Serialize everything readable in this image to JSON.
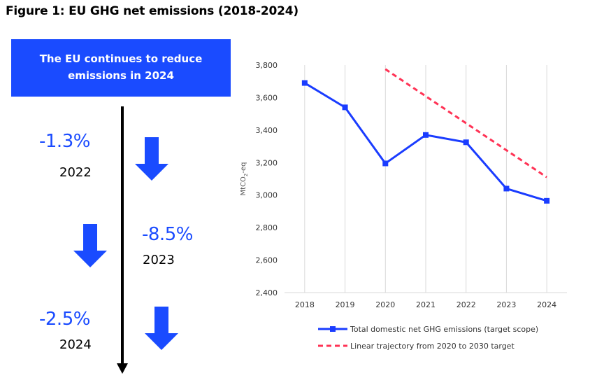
{
  "figure_title": "Figure 1: EU GHG net emissions (2018-2024)",
  "banner": {
    "line1": "The EU continues to reduce",
    "line2": "emissions in 2024"
  },
  "timeline": [
    {
      "pct": "-1.3%",
      "year": "2022"
    },
    {
      "pct": "-8.5%",
      "year": "2023"
    },
    {
      "pct": "-2.5%",
      "year": "2024"
    }
  ],
  "colors": {
    "accent_blue": "#1a4bff",
    "series_blue": "#1a3cff",
    "dashed_red": "#ff3355",
    "grid": "#d9d9d9"
  },
  "chart_data": {
    "type": "line",
    "title": "",
    "xlabel": "",
    "ylabel": "MtCO₂-eq",
    "ylabel_parts": {
      "pre": "MtCO",
      "sub": "2",
      "post": "-eq"
    },
    "x": [
      "2018",
      "2019",
      "2020",
      "2021",
      "2022",
      "2023",
      "2024"
    ],
    "ylim": [
      2400,
      3800
    ],
    "yticks": [
      2400,
      2600,
      2800,
      3000,
      3200,
      3400,
      3600,
      3800
    ],
    "ytick_labels": [
      "2,400",
      "2,600",
      "2,800",
      "3,000",
      "3,200",
      "3,400",
      "3,600",
      "3,800"
    ],
    "series": [
      {
        "name": "Total domestic net GHG emissions (target scope)",
        "style": "solid-square-markers",
        "x": [
          "2018",
          "2019",
          "2020",
          "2021",
          "2022",
          "2023",
          "2024"
        ],
        "values": [
          3690,
          3540,
          3195,
          3370,
          3325,
          3040,
          2965
        ]
      },
      {
        "name": "Linear trajectory from 2020 to 2030 target",
        "style": "dashed",
        "x": [
          "2020",
          "2024"
        ],
        "values": [
          3775,
          3110
        ]
      }
    ],
    "grid": "vertical",
    "legend_position": "bottom"
  }
}
